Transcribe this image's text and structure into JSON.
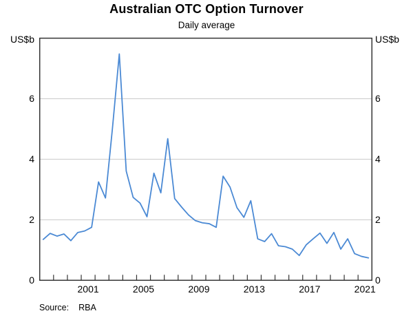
{
  "header": {
    "title": "Australian OTC Option Turnover",
    "subtitle": "Daily average"
  },
  "source": {
    "label": "Source:",
    "value": "RBA"
  },
  "chart_data": {
    "type": "line",
    "title": "Australian OTC Option Turnover",
    "subtitle": "Daily average",
    "unit_left": "US$b",
    "unit_right": "US$b",
    "ylabel": "US$b",
    "ylim": [
      0,
      8
    ],
    "y_ticks": [
      0,
      2,
      4,
      6
    ],
    "grid": "horizontal-at-2-4-6",
    "legend_position": "none",
    "xlim_years": [
      1998,
      2022
    ],
    "x_tick_labels": [
      "2001",
      "2005",
      "2009",
      "2013",
      "2017",
      "2021"
    ],
    "x_tick_label_years": [
      2001,
      2005,
      2009,
      2013,
      2017,
      2021
    ],
    "minor_x_ticks": "every-year-inward",
    "line_color": "#4a89d4",
    "gridline_color": "#c9c9c9",
    "border_color": "#333333",
    "series": [
      {
        "name": "Australian OTC option turnover, daily average",
        "frequency": "semiannual",
        "periods": [
          "1998 H1",
          "1998 H2",
          "1999 H1",
          "1999 H2",
          "2000 H1",
          "2000 H2",
          "2001 H1",
          "2001 H2",
          "2002 H1",
          "2002 H2",
          "2003 H1",
          "2003 H2",
          "2004 H1",
          "2004 H2",
          "2005 H1",
          "2005 H2",
          "2006 H1",
          "2006 H2",
          "2007 H1",
          "2007 H2",
          "2008 H1",
          "2008 H2",
          "2009 H1",
          "2009 H2",
          "2010 H1",
          "2010 H2",
          "2011 H1",
          "2011 H2",
          "2012 H1",
          "2012 H2",
          "2013 H1",
          "2013 H2",
          "2014 H1",
          "2014 H2",
          "2015 H1",
          "2015 H2",
          "2016 H1",
          "2016 H2",
          "2017 H1",
          "2017 H2",
          "2018 H1",
          "2018 H2",
          "2019 H1",
          "2019 H2",
          "2020 H1",
          "2020 H2",
          "2021 H1",
          "2021 H2"
        ],
        "values": [
          1.35,
          1.55,
          1.46,
          1.53,
          1.31,
          1.58,
          1.63,
          1.75,
          3.25,
          2.72,
          5.0,
          7.48,
          3.61,
          2.74,
          2.55,
          2.1,
          3.54,
          2.89,
          4.68,
          2.7,
          2.42,
          2.16,
          1.97,
          1.9,
          1.87,
          1.75,
          3.44,
          3.08,
          2.4,
          2.08,
          2.63,
          1.37,
          1.28,
          1.54,
          1.14,
          1.11,
          1.03,
          0.82,
          1.17,
          1.37,
          1.56,
          1.22,
          1.58,
          1.03,
          1.37,
          0.88,
          0.79,
          0.74
        ]
      }
    ],
    "source": "RBA"
  }
}
